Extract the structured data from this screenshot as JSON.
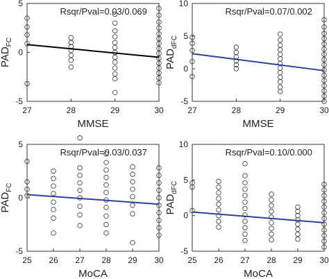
{
  "chart_data": [
    {
      "type": "scatter",
      "xlabel": "MMSE",
      "ylabel_main": "PAD",
      "ylabel_sub": "FC",
      "annotation": "Rsqr/Pval=0.03/0.069",
      "xticks": [
        27,
        28,
        29,
        30
      ],
      "yticks": [
        -5,
        0,
        5
      ],
      "xlim": [
        27,
        30
      ],
      "ylim": [
        -5,
        5
      ],
      "grid": false,
      "fit_line": {
        "color": "#000000",
        "x": [
          27,
          30
        ],
        "y": [
          0.8,
          -0.5
        ]
      },
      "points": [
        {
          "x": 27,
          "y": 3.5
        },
        {
          "x": 27,
          "y": 2.6
        },
        {
          "x": 27,
          "y": 1.8
        },
        {
          "x": 27,
          "y": 0.9
        },
        {
          "x": 27,
          "y": -3.2
        },
        {
          "x": 28,
          "y": 1.5
        },
        {
          "x": 28,
          "y": 1.0
        },
        {
          "x": 28,
          "y": 0.6
        },
        {
          "x": 28,
          "y": 0.2
        },
        {
          "x": 28,
          "y": -0.3
        },
        {
          "x": 28,
          "y": -0.8
        },
        {
          "x": 28,
          "y": -1.5
        },
        {
          "x": 29,
          "y": 3.9
        },
        {
          "x": 29,
          "y": 3.0
        },
        {
          "x": 29,
          "y": 2.2
        },
        {
          "x": 29,
          "y": 1.6
        },
        {
          "x": 29,
          "y": 1.0
        },
        {
          "x": 29,
          "y": 0.5
        },
        {
          "x": 29,
          "y": 0.0
        },
        {
          "x": 29,
          "y": -0.5
        },
        {
          "x": 29,
          "y": -1.0
        },
        {
          "x": 29,
          "y": -1.6
        },
        {
          "x": 29,
          "y": -2.2
        },
        {
          "x": 29,
          "y": -2.7
        },
        {
          "x": 29,
          "y": -4.1
        },
        {
          "x": 30,
          "y": 5.6
        },
        {
          "x": 30,
          "y": 4.5
        },
        {
          "x": 30,
          "y": 3.8
        },
        {
          "x": 30,
          "y": 3.1
        },
        {
          "x": 30,
          "y": 2.5
        },
        {
          "x": 30,
          "y": 1.9
        },
        {
          "x": 30,
          "y": 1.4
        },
        {
          "x": 30,
          "y": 0.9
        },
        {
          "x": 30,
          "y": 0.4
        },
        {
          "x": 30,
          "y": -0.1
        },
        {
          "x": 30,
          "y": -0.6
        },
        {
          "x": 30,
          "y": -1.1
        },
        {
          "x": 30,
          "y": -1.6
        },
        {
          "x": 30,
          "y": -2.1
        },
        {
          "x": 30,
          "y": -2.6
        },
        {
          "x": 30,
          "y": -3.1
        }
      ]
    },
    {
      "type": "scatter",
      "xlabel": "MMSE",
      "ylabel_main": "PAD",
      "ylabel_sub": "dFC",
      "annotation": "Rsqr/Pval=0.07/0.002",
      "xticks": [
        27,
        28,
        29,
        30
      ],
      "yticks": [
        -5,
        0,
        5,
        10
      ],
      "xlim": [
        27,
        30
      ],
      "ylim": [
        -5,
        10
      ],
      "grid": false,
      "fit_line": {
        "color": "#2e3f9e",
        "x": [
          27,
          30
        ],
        "y": [
          2.3,
          -0.3
        ]
      },
      "points": [
        {
          "x": 27,
          "y": 4.8
        },
        {
          "x": 27,
          "y": 3.9
        },
        {
          "x": 27,
          "y": 2.8
        },
        {
          "x": 27,
          "y": 1.1
        },
        {
          "x": 27,
          "y": -1.2
        },
        {
          "x": 28,
          "y": 3.3
        },
        {
          "x": 28,
          "y": 2.5
        },
        {
          "x": 28,
          "y": 1.8
        },
        {
          "x": 28,
          "y": 1.2
        },
        {
          "x": 28,
          "y": 0.6
        },
        {
          "x": 28,
          "y": 0.0
        },
        {
          "x": 29,
          "y": 5.3
        },
        {
          "x": 29,
          "y": 4.4
        },
        {
          "x": 29,
          "y": 3.6
        },
        {
          "x": 29,
          "y": 2.9
        },
        {
          "x": 29,
          "y": 2.2
        },
        {
          "x": 29,
          "y": 1.5
        },
        {
          "x": 29,
          "y": 0.8
        },
        {
          "x": 29,
          "y": 0.1
        },
        {
          "x": 29,
          "y": -0.6
        },
        {
          "x": 29,
          "y": -1.3
        },
        {
          "x": 29,
          "y": -2.0
        },
        {
          "x": 29,
          "y": -2.8
        },
        {
          "x": 29,
          "y": -3.5
        },
        {
          "x": 30,
          "y": 7.5
        },
        {
          "x": 30,
          "y": 6.4
        },
        {
          "x": 30,
          "y": 5.4
        },
        {
          "x": 30,
          "y": 4.6
        },
        {
          "x": 30,
          "y": 3.8
        },
        {
          "x": 30,
          "y": 3.0
        },
        {
          "x": 30,
          "y": 2.2
        },
        {
          "x": 30,
          "y": 1.4
        },
        {
          "x": 30,
          "y": 0.6
        },
        {
          "x": 30,
          "y": -0.2
        },
        {
          "x": 30,
          "y": -1.0
        },
        {
          "x": 30,
          "y": -1.8
        },
        {
          "x": 30,
          "y": -2.6
        },
        {
          "x": 30,
          "y": -3.4
        },
        {
          "x": 30,
          "y": -4.2
        },
        {
          "x": 30,
          "y": -5.0
        }
      ]
    },
    {
      "type": "scatter",
      "xlabel": "MoCA",
      "ylabel_main": "PAD",
      "ylabel_sub": "FC",
      "annotation": "Rsqr/Pval=0.03/0.037",
      "xticks": [
        25,
        26,
        27,
        28,
        29,
        30
      ],
      "yticks": [
        -5,
        0,
        5
      ],
      "xlim": [
        25,
        30
      ],
      "ylim": [
        -5,
        5
      ],
      "grid": false,
      "fit_line": {
        "color": "#2e3f9e",
        "x": [
          25,
          30
        ],
        "y": [
          0.3,
          -0.6
        ]
      },
      "points": [
        {
          "x": 25,
          "y": 3.4
        },
        {
          "x": 25,
          "y": 1.5
        },
        {
          "x": 25,
          "y": 0.8
        },
        {
          "x": 25,
          "y": 0.2
        },
        {
          "x": 26,
          "y": 2.5
        },
        {
          "x": 26,
          "y": 1.8
        },
        {
          "x": 26,
          "y": 1.1
        },
        {
          "x": 26,
          "y": 0.4
        },
        {
          "x": 26,
          "y": -0.4
        },
        {
          "x": 26,
          "y": -1.1
        },
        {
          "x": 26,
          "y": -1.9
        },
        {
          "x": 26,
          "y": -3.3
        },
        {
          "x": 27,
          "y": 5.6
        },
        {
          "x": 27,
          "y": 2.8
        },
        {
          "x": 27,
          "y": 2.1
        },
        {
          "x": 27,
          "y": 1.4
        },
        {
          "x": 27,
          "y": 0.7
        },
        {
          "x": 27,
          "y": 0.0
        },
        {
          "x": 27,
          "y": -0.8
        },
        {
          "x": 27,
          "y": -1.6
        },
        {
          "x": 27,
          "y": -2.6
        },
        {
          "x": 28,
          "y": 4.1
        },
        {
          "x": 28,
          "y": 3.3
        },
        {
          "x": 28,
          "y": 2.6
        },
        {
          "x": 28,
          "y": 1.9
        },
        {
          "x": 28,
          "y": 1.2
        },
        {
          "x": 28,
          "y": 0.5
        },
        {
          "x": 28,
          "y": -0.2
        },
        {
          "x": 28,
          "y": -0.9
        },
        {
          "x": 28,
          "y": -1.7
        },
        {
          "x": 28,
          "y": -2.5
        },
        {
          "x": 28,
          "y": -3.3
        },
        {
          "x": 29,
          "y": 2.9
        },
        {
          "x": 29,
          "y": 2.2
        },
        {
          "x": 29,
          "y": 1.5
        },
        {
          "x": 29,
          "y": 0.8
        },
        {
          "x": 29,
          "y": 0.1
        },
        {
          "x": 29,
          "y": -0.7
        },
        {
          "x": 29,
          "y": -1.5
        },
        {
          "x": 29,
          "y": -4.2
        },
        {
          "x": 30,
          "y": 2.8
        },
        {
          "x": 30,
          "y": 2.1
        },
        {
          "x": 30,
          "y": 1.4
        },
        {
          "x": 30,
          "y": 0.7
        },
        {
          "x": 30,
          "y": 0.0
        },
        {
          "x": 30,
          "y": -0.7
        },
        {
          "x": 30,
          "y": -1.4
        },
        {
          "x": 30,
          "y": -2.1
        },
        {
          "x": 30,
          "y": -2.8
        },
        {
          "x": 30,
          "y": -3.5
        }
      ]
    },
    {
      "type": "scatter",
      "xlabel": "MoCA",
      "ylabel_main": "PAD",
      "ylabel_sub": "dFC",
      "annotation": "Rsqr/Pval=0.10/0.000",
      "xticks": [
        25,
        26,
        27,
        28,
        29,
        30
      ],
      "yticks": [
        -5,
        0,
        5,
        10
      ],
      "xlim": [
        25,
        30
      ],
      "ylim": [
        -5,
        10
      ],
      "grid": false,
      "fit_line": {
        "color": "#2e3f9e",
        "x": [
          25,
          30
        ],
        "y": [
          0.5,
          -1.0
        ]
      },
      "points": [
        {
          "x": 25,
          "y": 4.6
        },
        {
          "x": 25,
          "y": 4.0
        },
        {
          "x": 25,
          "y": 0.7
        },
        {
          "x": 26,
          "y": 4.8
        },
        {
          "x": 26,
          "y": 4.0
        },
        {
          "x": 26,
          "y": 3.2
        },
        {
          "x": 26,
          "y": 2.4
        },
        {
          "x": 26,
          "y": 1.6
        },
        {
          "x": 26,
          "y": 0.8
        },
        {
          "x": 26,
          "y": 0.0
        },
        {
          "x": 26,
          "y": -0.8
        },
        {
          "x": 26,
          "y": -1.6
        },
        {
          "x": 27,
          "y": 7.3
        },
        {
          "x": 27,
          "y": 5.6
        },
        {
          "x": 27,
          "y": 4.6
        },
        {
          "x": 27,
          "y": 3.7
        },
        {
          "x": 27,
          "y": 2.8
        },
        {
          "x": 27,
          "y": 1.9
        },
        {
          "x": 27,
          "y": 1.0
        },
        {
          "x": 27,
          "y": 0.1
        },
        {
          "x": 27,
          "y": -0.8
        },
        {
          "x": 27,
          "y": -1.7
        },
        {
          "x": 27,
          "y": -2.6
        },
        {
          "x": 27,
          "y": -3.5
        },
        {
          "x": 28,
          "y": 3.0
        },
        {
          "x": 28,
          "y": 2.2
        },
        {
          "x": 28,
          "y": 1.4
        },
        {
          "x": 28,
          "y": 0.6
        },
        {
          "x": 28,
          "y": -0.2
        },
        {
          "x": 28,
          "y": -1.0
        },
        {
          "x": 28,
          "y": -1.8
        },
        {
          "x": 28,
          "y": -2.6
        },
        {
          "x": 28,
          "y": -3.4
        },
        {
          "x": 29,
          "y": 1.2
        },
        {
          "x": 29,
          "y": 0.6
        },
        {
          "x": 29,
          "y": 0.0
        },
        {
          "x": 29,
          "y": -0.6
        },
        {
          "x": 29,
          "y": -1.2
        },
        {
          "x": 29,
          "y": -1.9
        },
        {
          "x": 29,
          "y": -2.6
        },
        {
          "x": 29,
          "y": -3.3
        },
        {
          "x": 30,
          "y": 4.4
        },
        {
          "x": 30,
          "y": 3.6
        },
        {
          "x": 30,
          "y": 2.8
        },
        {
          "x": 30,
          "y": 2.0
        },
        {
          "x": 30,
          "y": 1.2
        },
        {
          "x": 30,
          "y": 0.4
        },
        {
          "x": 30,
          "y": -0.4
        },
        {
          "x": 30,
          "y": -1.2
        },
        {
          "x": 30,
          "y": -2.0
        },
        {
          "x": 30,
          "y": -2.8
        },
        {
          "x": 30,
          "y": -3.6
        },
        {
          "x": 30,
          "y": -4.4
        }
      ]
    }
  ]
}
